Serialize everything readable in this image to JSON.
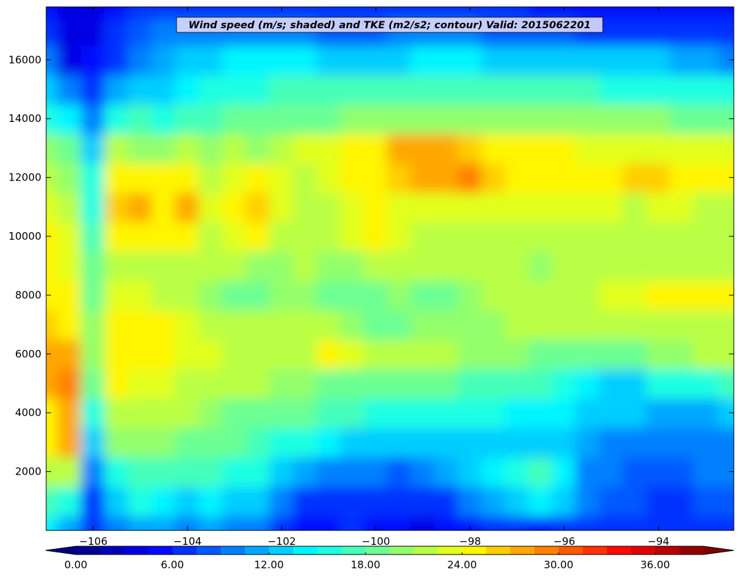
{
  "chart_data": {
    "type": "heatmap",
    "title": "Wind speed (m/s; shaded) and TKE (m2/s2; contour) Valid: 2015062201",
    "xlabel": "",
    "ylabel": "",
    "xlim": [
      -107.0,
      -92.4
    ],
    "ylim": [
      0,
      17800
    ],
    "x_ticks": [
      -106,
      -104,
      -102,
      -100,
      -98,
      -96,
      -94
    ],
    "x_tick_labels": [
      "−106",
      "−104",
      "−102",
      "−100",
      "−98",
      "−96",
      "−94"
    ],
    "y_ticks": [
      2000,
      4000,
      6000,
      8000,
      10000,
      12000,
      14000,
      16000
    ],
    "y_tick_labels": [
      "2000",
      "4000",
      "6000",
      "8000",
      "10000",
      "12000",
      "14000",
      "16000"
    ],
    "grid": false,
    "colorbar": {
      "orientation": "horizontal",
      "extend": "both",
      "levels": [
        0,
        1.5,
        3,
        4.5,
        6,
        7.5,
        9,
        10.5,
        12,
        13.5,
        15,
        16.5,
        18,
        19.5,
        21,
        22.5,
        24,
        25.5,
        27,
        28.5,
        30,
        31.5,
        33,
        34.5,
        36,
        37.5,
        39
      ],
      "tick_values": [
        0,
        6,
        12,
        18,
        24,
        30,
        36
      ],
      "tick_labels": [
        "0.00",
        "6.00",
        "12.00",
        "18.00",
        "24.00",
        "30.00",
        "36.00"
      ],
      "under_color": "#000080",
      "over_color": "#800000",
      "colors": [
        "#00008f",
        "#0000b5",
        "#0000e0",
        "#0008ff",
        "#0035ff",
        "#0065ff",
        "#0091ff",
        "#00c1ff",
        "#00edf7",
        "#1eff d9",
        "#4cffab",
        "#78ff7f",
        "#a8ff4f",
        "#d6ff21",
        "#fff200",
        "#ffc500",
        "#ff9500",
        "#ff6800",
        "#ff3800",
        "#ff0b00",
        "#d30000",
        "#a50000"
      ]
    },
    "x_grid": [
      -107.0,
      -106.5,
      -106.0,
      -105.5,
      -105.0,
      -104.5,
      -104.0,
      -103.5,
      -103.0,
      -102.5,
      -102.0,
      -101.5,
      -101.0,
      -100.5,
      -100.0,
      -99.5,
      -99.0,
      -98.5,
      -98.0,
      -97.5,
      -97.0,
      -96.5,
      -96.0,
      -95.5,
      -95.0,
      -94.5,
      -94.0,
      -93.5,
      -93.0,
      -92.4
    ],
    "y_grid": [
      0,
      1000,
      2000,
      3000,
      4000,
      5000,
      6000,
      7000,
      8000,
      9000,
      10000,
      11000,
      12000,
      13000,
      14000,
      15000,
      16000,
      17000,
      17800
    ],
    "wind_speed_ms": [
      [
        14,
        11,
        6,
        9,
        11,
        11,
        10,
        11,
        10,
        9,
        7,
        5,
        5,
        6,
        5,
        5,
        4,
        5,
        5,
        6,
        6,
        5,
        6,
        6,
        7,
        6,
        6,
        7,
        7,
        7
      ],
      [
        17,
        15,
        7,
        13,
        15,
        14,
        13,
        14,
        13,
        12,
        10,
        7,
        6,
        6,
        6,
        6,
        6,
        7,
        9,
        11,
        13,
        14,
        12,
        9,
        8,
        8,
        7,
        7,
        8,
        8
      ],
      [
        22,
        22,
        10,
        16,
        17,
        17,
        17,
        17,
        16,
        15,
        13,
        11,
        10,
        9,
        9,
        8,
        9,
        11,
        12,
        14,
        16,
        17,
        14,
        10,
        9,
        8,
        8,
        8,
        9,
        9
      ],
      [
        24,
        27,
        13,
        20,
        20,
        20,
        19,
        19,
        18,
        17,
        16,
        15,
        14,
        13,
        13,
        13,
        12,
        12,
        13,
        13,
        13,
        13,
        12,
        11,
        10,
        10,
        9,
        9,
        9,
        10
      ],
      [
        25,
        28,
        16,
        22,
        22,
        22,
        21,
        20,
        19,
        19,
        18,
        18,
        17,
        17,
        16,
        16,
        15,
        15,
        15,
        15,
        14,
        14,
        14,
        13,
        12,
        12,
        11,
        11,
        11,
        12
      ],
      [
        27,
        29,
        19,
        24,
        23,
        23,
        22,
        21,
        21,
        21,
        20,
        20,
        19,
        19,
        19,
        18,
        18,
        18,
        17,
        17,
        17,
        17,
        16,
        14,
        13,
        13,
        15,
        16,
        16,
        17
      ],
      [
        28,
        27,
        20,
        25,
        24,
        24,
        23,
        23,
        22,
        22,
        21,
        22,
        24,
        23,
        22,
        21,
        21,
        21,
        20,
        20,
        20,
        19,
        19,
        19,
        19,
        19,
        20,
        20,
        21,
        21
      ],
      [
        26,
        25,
        20,
        24,
        24,
        24,
        23,
        22,
        22,
        21,
        21,
        21,
        21,
        20,
        19,
        19,
        20,
        20,
        20,
        20,
        21,
        21,
        21,
        21,
        21,
        22,
        22,
        22,
        22,
        22
      ],
      [
        24,
        24,
        19,
        23,
        23,
        22,
        21,
        20,
        19,
        19,
        20,
        20,
        19,
        18,
        19,
        20,
        19,
        19,
        20,
        21,
        21,
        21,
        21,
        22,
        23,
        23,
        24,
        24,
        24,
        25
      ],
      [
        24,
        23,
        18,
        22,
        22,
        22,
        22,
        21,
        21,
        20,
        20,
        21,
        20,
        20,
        21,
        21,
        21,
        21,
        21,
        21,
        21,
        20,
        21,
        21,
        22,
        22,
        22,
        22,
        22,
        22
      ],
      [
        24,
        23,
        17,
        24,
        25,
        24,
        24,
        22,
        23,
        24,
        22,
        21,
        22,
        23,
        24,
        23,
        22,
        22,
        22,
        22,
        21,
        21,
        21,
        21,
        21,
        21,
        21,
        22,
        22,
        22
      ],
      [
        23,
        22,
        16,
        26,
        27,
        25,
        27,
        23,
        24,
        26,
        23,
        22,
        22,
        23,
        25,
        23,
        23,
        23,
        23,
        23,
        23,
        23,
        23,
        23,
        23,
        22,
        23,
        23,
        22,
        22
      ],
      [
        22,
        20,
        15,
        25,
        24,
        24,
        25,
        22,
        23,
        24,
        23,
        22,
        23,
        24,
        25,
        26,
        27,
        28,
        29,
        26,
        24,
        24,
        25,
        25,
        25,
        26,
        26,
        25,
        25,
        25
      ],
      [
        20,
        18,
        13,
        21,
        20,
        20,
        21,
        20,
        21,
        20,
        22,
        23,
        23,
        24,
        25,
        27,
        27,
        27,
        26,
        25,
        24,
        24,
        24,
        23,
        23,
        23,
        23,
        23,
        23,
        23
      ],
      [
        16,
        14,
        10,
        16,
        17,
        16,
        17,
        17,
        18,
        18,
        19,
        19,
        19,
        20,
        20,
        20,
        20,
        20,
        20,
        20,
        20,
        20,
        20,
        20,
        20,
        20,
        20,
        19,
        19,
        19
      ],
      [
        12,
        9,
        7,
        11,
        13,
        13,
        14,
        15,
        16,
        16,
        17,
        17,
        17,
        17,
        17,
        17,
        17,
        17,
        17,
        17,
        17,
        17,
        17,
        17,
        16,
        16,
        16,
        16,
        16,
        15
      ],
      [
        9,
        4,
        5,
        7,
        10,
        11,
        12,
        13,
        14,
        14,
        14,
        14,
        13,
        13,
        13,
        13,
        14,
        14,
        14,
        13,
        13,
        13,
        12,
        12,
        12,
        12,
        12,
        11,
        11,
        10
      ],
      [
        6,
        3,
        4,
        6,
        8,
        9,
        9,
        10,
        10,
        9,
        9,
        9,
        8,
        8,
        8,
        9,
        9,
        9,
        9,
        8,
        8,
        8,
        8,
        7,
        7,
        7,
        6,
        6,
        6,
        6
      ],
      [
        5,
        3,
        4,
        5,
        6,
        7,
        7,
        7,
        7,
        7,
        7,
        6,
        6,
        6,
        6,
        6,
        6,
        6,
        6,
        6,
        6,
        5,
        5,
        5,
        5,
        5,
        5,
        5,
        5,
        5
      ]
    ]
  }
}
